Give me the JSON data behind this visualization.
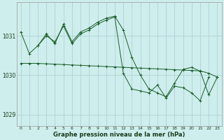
{
  "title": "Graphe pression niveau de la mer (hPa)",
  "background_color": "#ceeeed",
  "grid_color": "#aacccc",
  "line_color": "#1a5c28",
  "ylim": [
    1028.7,
    1031.85
  ],
  "yticks": [
    1029,
    1030,
    1031
  ],
  "line1_x": [
    0,
    1,
    2,
    3,
    4,
    5,
    6,
    7,
    8,
    9,
    10,
    11,
    12,
    13,
    14,
    15,
    16,
    17,
    18,
    19,
    20,
    21,
    22,
    23
  ],
  "line1_y": [
    1031.1,
    1030.55,
    1030.75,
    1031.05,
    1030.8,
    1031.3,
    1030.85,
    1031.1,
    1031.2,
    1031.35,
    1031.45,
    1031.5,
    1031.15,
    1030.45,
    1030.0,
    1029.65,
    1029.55,
    1029.45,
    1029.8,
    1030.15,
    1030.2,
    1030.1,
    1029.5,
    1029.95
  ],
  "line2_x": [
    2,
    3,
    4,
    5,
    6,
    7,
    8,
    9,
    10,
    11,
    12,
    13,
    14,
    15,
    16,
    17,
    18,
    19,
    20,
    21,
    22
  ],
  "line2_y": [
    1030.75,
    1031.0,
    1030.85,
    1031.25,
    1030.8,
    1031.05,
    1031.15,
    1031.3,
    1031.4,
    1031.48,
    1030.05,
    1029.65,
    1029.6,
    1029.55,
    1029.75,
    1029.42,
    1029.72,
    1029.68,
    1029.55,
    1029.35,
    1029.95
  ],
  "line3_x": [
    0,
    1,
    2,
    3,
    4,
    5,
    6,
    7,
    8,
    9,
    10,
    11,
    12,
    13,
    14,
    15,
    16,
    17,
    18,
    19,
    20,
    21,
    22,
    23
  ],
  "line3_y": [
    1030.3,
    1030.3,
    1030.3,
    1030.29,
    1030.28,
    1030.27,
    1030.26,
    1030.25,
    1030.24,
    1030.23,
    1030.22,
    1030.21,
    1030.2,
    1030.19,
    1030.18,
    1030.17,
    1030.16,
    1030.15,
    1030.14,
    1030.13,
    1030.12,
    1030.11,
    1030.05,
    1029.95
  ],
  "x_labels": [
    "0",
    "1",
    "2",
    "3",
    "4",
    "5",
    "6",
    "7",
    "8",
    "9",
    "10",
    "11",
    "12",
    "13",
    "14",
    "15",
    "16",
    "17",
    "18",
    "19",
    "20",
    "21",
    "22",
    "23"
  ]
}
